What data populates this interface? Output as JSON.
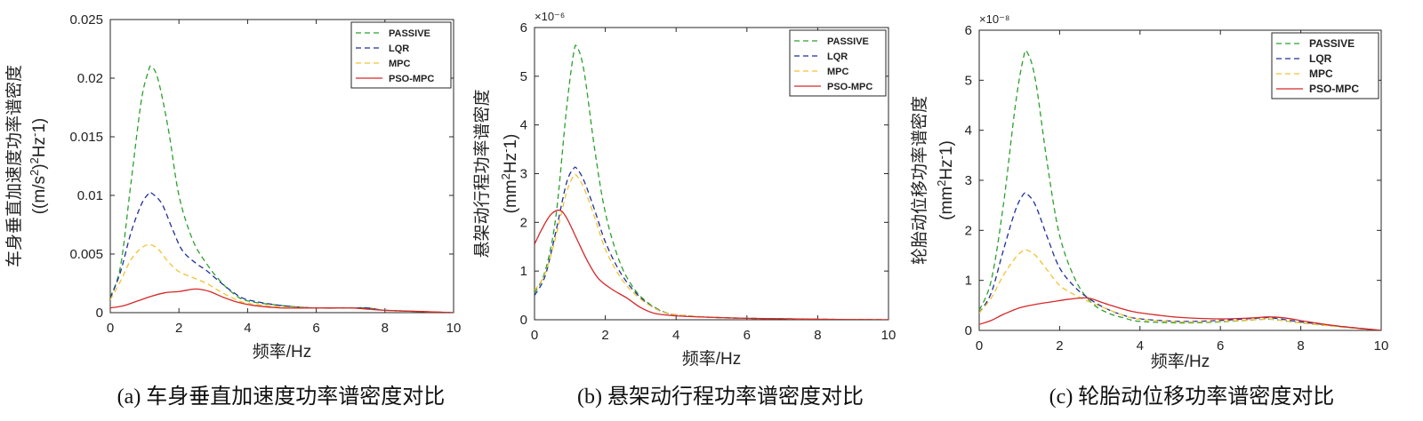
{
  "chart_data": [
    {
      "type": "line",
      "panel": "a",
      "caption": "(a) 车身垂直加速度功率谱密度对比",
      "xlabel": "频率/Hz",
      "ylabel_cn": "车身垂直加速度功率谱密度",
      "ylabel_unit_parts": [
        "((m/s",
        "2",
        ")",
        "2",
        "Hz",
        "-",
        "1)"
      ],
      "xlim": [
        0,
        10
      ],
      "ylim": [
        0,
        0.025
      ],
      "xticks": [
        "0",
        "2",
        "4",
        "6",
        "8",
        "10"
      ],
      "yticks": [
        "0",
        "0.005",
        "0.01",
        "0.015",
        "0.02",
        "0.025"
      ],
      "exponent": "",
      "legend_position": "top-right",
      "series": [
        {
          "name": "PASSIVE",
          "color": "#2ca02c",
          "dash": true,
          "x": [
            0,
            0.3,
            0.6,
            0.9,
            1.1,
            1.2,
            1.4,
            1.7,
            2.0,
            2.4,
            2.8,
            3.2,
            3.6,
            4.0,
            5.0,
            6.0,
            7.0,
            7.5,
            8.0,
            9.0,
            10.0
          ],
          "y": [
            0.0013,
            0.004,
            0.011,
            0.018,
            0.0205,
            0.021,
            0.0198,
            0.0155,
            0.01,
            0.0062,
            0.0042,
            0.0027,
            0.0016,
            0.001,
            0.0006,
            0.0004,
            0.0004,
            0.0004,
            0.0002,
            0.0001,
            0.0
          ]
        },
        {
          "name": "LQR",
          "color": "#1f2f99",
          "dash": true,
          "x": [
            0,
            0.3,
            0.6,
            0.9,
            1.1,
            1.2,
            1.5,
            1.8,
            2.1,
            2.5,
            2.8,
            3.2,
            3.6,
            4.0,
            5.0,
            6.0,
            7.0,
            7.5,
            8.0,
            9.0,
            10.0
          ],
          "y": [
            0.0012,
            0.0035,
            0.0068,
            0.0092,
            0.0101,
            0.0102,
            0.0093,
            0.0072,
            0.0053,
            0.0042,
            0.0036,
            0.0026,
            0.0017,
            0.0011,
            0.0006,
            0.0004,
            0.0004,
            0.0004,
            0.0002,
            0.0001,
            0.0
          ]
        },
        {
          "name": "MPC",
          "color": "#f2c231",
          "dash": true,
          "x": [
            0,
            0.3,
            0.6,
            0.9,
            1.15,
            1.4,
            1.7,
            2.0,
            2.4,
            2.8,
            3.2,
            3.6,
            4.0,
            5.0,
            6.0,
            7.0,
            7.5,
            8.0,
            9.0,
            10.0
          ],
          "y": [
            0.0011,
            0.0027,
            0.0045,
            0.0055,
            0.0058,
            0.0054,
            0.0043,
            0.0035,
            0.003,
            0.0025,
            0.0018,
            0.0012,
            0.0008,
            0.0005,
            0.0004,
            0.0004,
            0.0003,
            0.0002,
            0.0001,
            0.0
          ]
        },
        {
          "name": "PSO-MPC",
          "color": "#d62728",
          "dash": false,
          "x": [
            0,
            0.4,
            0.8,
            1.2,
            1.6,
            2.0,
            2.4,
            2.6,
            2.9,
            3.3,
            3.7,
            4.2,
            5.0,
            6.0,
            7.0,
            7.5,
            8.0,
            9.0,
            10.0
          ],
          "y": [
            0.0004,
            0.0006,
            0.001,
            0.0014,
            0.0017,
            0.0018,
            0.002,
            0.002,
            0.0018,
            0.0013,
            0.0009,
            0.0006,
            0.0004,
            0.0004,
            0.0004,
            0.0003,
            0.0002,
            0.0001,
            0.0
          ]
        }
      ]
    },
    {
      "type": "line",
      "panel": "b",
      "caption": "(b) 悬架动行程功率谱密度对比",
      "xlabel": "频率/Hz",
      "ylabel_cn": "悬架动行程功率谱密度",
      "ylabel_unit_parts": [
        "(mm",
        "2",
        "Hz",
        "-",
        "1)"
      ],
      "xlim": [
        0,
        10
      ],
      "ylim": [
        0,
        6
      ],
      "xticks": [
        "0",
        "2",
        "4",
        "6",
        "8",
        "10"
      ],
      "yticks": [
        "0",
        "1",
        "2",
        "3",
        "4",
        "5",
        "6"
      ],
      "exponent": "×10⁻⁶",
      "legend_position": "top-right",
      "series": [
        {
          "name": "PASSIVE",
          "color": "#2ca02c",
          "dash": true,
          "x": [
            0,
            0.3,
            0.6,
            0.9,
            1.1,
            1.2,
            1.4,
            1.7,
            2.0,
            2.4,
            2.8,
            3.2,
            3.6,
            4.0,
            5.0,
            6.0,
            7.0,
            8.0,
            9.0,
            10.0
          ],
          "y": [
            0.55,
            1.0,
            2.1,
            4.3,
            5.45,
            5.6,
            5.1,
            3.5,
            2.2,
            1.2,
            0.65,
            0.35,
            0.18,
            0.1,
            0.05,
            0.03,
            0.02,
            0.01,
            0.005,
            0.0
          ]
        },
        {
          "name": "LQR",
          "color": "#1f2f99",
          "dash": true,
          "x": [
            0,
            0.3,
            0.6,
            0.9,
            1.1,
            1.2,
            1.4,
            1.7,
            2.0,
            2.4,
            2.8,
            3.2,
            3.6,
            4.0,
            5.0,
            6.0,
            7.0,
            8.0,
            9.0,
            10.0
          ],
          "y": [
            0.5,
            0.9,
            1.8,
            2.8,
            3.1,
            3.1,
            2.85,
            2.25,
            1.6,
            1.0,
            0.6,
            0.33,
            0.17,
            0.1,
            0.05,
            0.03,
            0.02,
            0.01,
            0.005,
            0.0
          ]
        },
        {
          "name": "MPC",
          "color": "#f2c231",
          "dash": true,
          "x": [
            0,
            0.3,
            0.6,
            0.9,
            1.1,
            1.2,
            1.4,
            1.7,
            2.0,
            2.4,
            2.8,
            3.2,
            3.6,
            4.0,
            5.0,
            6.0,
            7.0,
            8.0,
            9.0,
            10.0
          ],
          "y": [
            0.6,
            0.95,
            1.7,
            2.6,
            2.95,
            2.95,
            2.7,
            2.1,
            1.45,
            0.9,
            0.55,
            0.32,
            0.17,
            0.1,
            0.05,
            0.03,
            0.02,
            0.01,
            0.005,
            0.0
          ]
        },
        {
          "name": "PSO-MPC",
          "color": "#d62728",
          "dash": false,
          "x": [
            0,
            0.2,
            0.45,
            0.7,
            0.9,
            1.2,
            1.5,
            1.8,
            2.2,
            2.6,
            3.0,
            3.4,
            4.0,
            5.0,
            6.0,
            7.0,
            8.0,
            9.0,
            10.0
          ],
          "y": [
            1.55,
            1.85,
            2.15,
            2.25,
            2.1,
            1.65,
            1.2,
            0.85,
            0.62,
            0.45,
            0.25,
            0.13,
            0.08,
            0.05,
            0.03,
            0.02,
            0.01,
            0.005,
            0.0
          ]
        }
      ]
    },
    {
      "type": "line",
      "panel": "c",
      "caption": "(c) 轮胎动位移功率谱密度对比",
      "xlabel": "频率/Hz",
      "ylabel_cn": "轮胎动位移功率谱密度",
      "ylabel_unit_parts": [
        "(mm",
        "2",
        "Hz",
        "-",
        "1)"
      ],
      "xlim": [
        0,
        10
      ],
      "ylim": [
        0,
        6
      ],
      "xticks": [
        "0",
        "2",
        "4",
        "6",
        "8",
        "10"
      ],
      "yticks": [
        "0",
        "1",
        "2",
        "3",
        "4",
        "5",
        "6"
      ],
      "exponent": "×10⁻⁸",
      "legend_position": "top-right",
      "series": [
        {
          "name": "PASSIVE",
          "color": "#2ca02c",
          "dash": true,
          "x": [
            0,
            0.3,
            0.6,
            0.9,
            1.1,
            1.2,
            1.4,
            1.7,
            2.0,
            2.4,
            2.8,
            3.2,
            3.6,
            4.0,
            5.0,
            6.0,
            7.0,
            7.3,
            8.0,
            9.0,
            10.0
          ],
          "y": [
            0.4,
            1.0,
            2.5,
            4.5,
            5.45,
            5.55,
            5.0,
            3.3,
            1.9,
            1.0,
            0.55,
            0.35,
            0.25,
            0.18,
            0.15,
            0.17,
            0.22,
            0.22,
            0.15,
            0.07,
            0.0
          ]
        },
        {
          "name": "LQR",
          "color": "#1f2f99",
          "dash": true,
          "x": [
            0,
            0.3,
            0.6,
            0.9,
            1.1,
            1.2,
            1.4,
            1.7,
            2.0,
            2.4,
            2.8,
            3.2,
            3.6,
            4.0,
            5.0,
            6.0,
            7.0,
            7.3,
            8.0,
            9.0,
            10.0
          ],
          "y": [
            0.35,
            0.75,
            1.6,
            2.4,
            2.72,
            2.72,
            2.5,
            1.85,
            1.25,
            0.85,
            0.6,
            0.42,
            0.3,
            0.23,
            0.18,
            0.2,
            0.25,
            0.25,
            0.17,
            0.08,
            0.0
          ]
        },
        {
          "name": "MPC",
          "color": "#f2c231",
          "dash": true,
          "x": [
            0,
            0.3,
            0.6,
            0.9,
            1.1,
            1.2,
            1.4,
            1.7,
            2.0,
            2.4,
            2.8,
            3.2,
            3.6,
            4.0,
            5.0,
            6.0,
            7.0,
            7.3,
            8.0,
            9.0,
            10.0
          ],
          "y": [
            0.35,
            0.65,
            1.1,
            1.45,
            1.6,
            1.6,
            1.5,
            1.2,
            0.9,
            0.7,
            0.55,
            0.42,
            0.3,
            0.22,
            0.17,
            0.18,
            0.22,
            0.22,
            0.15,
            0.07,
            0.0
          ]
        },
        {
          "name": "PSO-MPC",
          "color": "#d62728",
          "dash": false,
          "x": [
            0,
            0.3,
            0.6,
            1.0,
            1.4,
            1.8,
            2.2,
            2.6,
            2.8,
            3.2,
            3.8,
            4.5,
            5.0,
            6.0,
            6.8,
            7.2,
            7.6,
            8.2,
            9.0,
            10.0
          ],
          "y": [
            0.12,
            0.2,
            0.32,
            0.45,
            0.52,
            0.57,
            0.62,
            0.65,
            0.63,
            0.52,
            0.38,
            0.3,
            0.26,
            0.23,
            0.25,
            0.27,
            0.25,
            0.17,
            0.08,
            0.0
          ]
        }
      ]
    }
  ]
}
